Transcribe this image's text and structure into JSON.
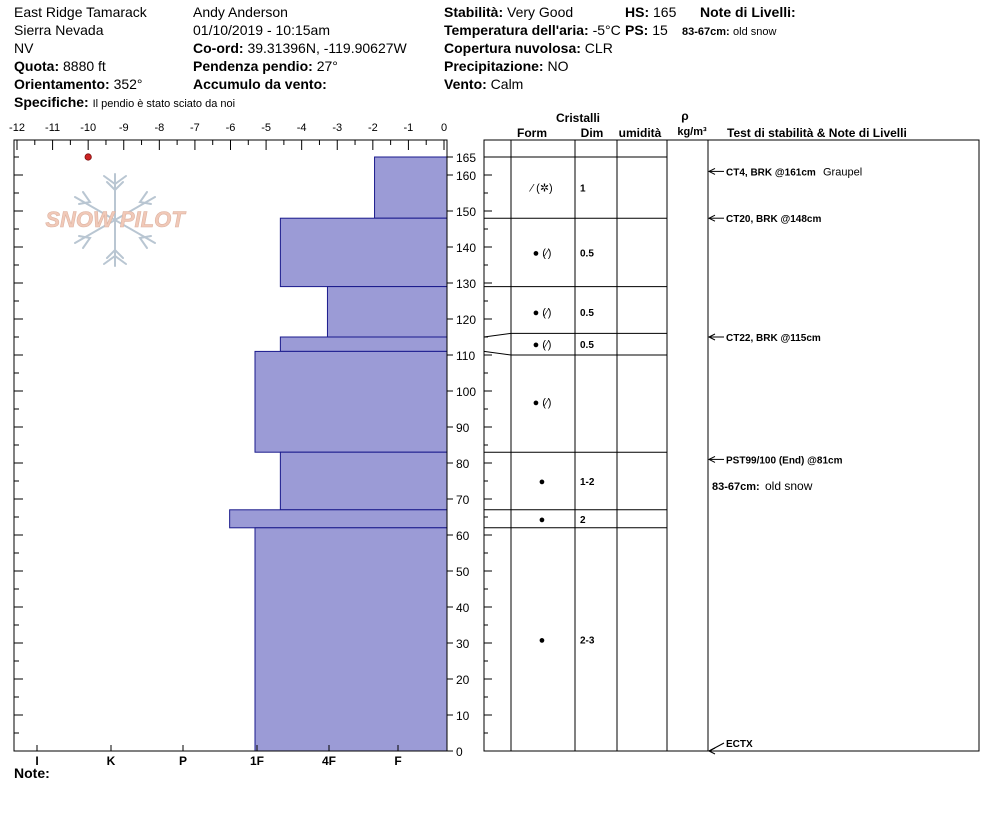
{
  "header": {
    "location": "East Ridge Tamarack",
    "range": "Sierra Nevada",
    "state": "NV",
    "elevation_label": "Quota:",
    "elevation_value": "8880 ft",
    "aspect_label": "Orientamento:",
    "aspect_value": "352°",
    "specifics_label": "Specifiche:",
    "specifics_value": "Il pendio è stato sciato da noi",
    "observer": "Andy Anderson",
    "datetime": "01/10/2019 - 10:15am",
    "coord_label": "Co-ord:",
    "coord_value": "39.31396N, -119.90627W",
    "slope_label": "Pendenza pendio:",
    "slope_value": "27°",
    "wind_loading_label": "Accumulo da vento:",
    "wind_loading_value": "",
    "stability_label": "Stabilità:",
    "stability_value": "Very Good",
    "air_temp_label": "Temperatura dell'aria:",
    "air_temp_value": "-5°C",
    "cloud_label": "Copertura nuvolosa:",
    "cloud_value": "CLR",
    "precip_label": "Precipitazione:",
    "precip_value": "NO",
    "wind_label": "Vento:",
    "wind_value": "Calm",
    "hs_label": "HS:",
    "hs_value": "165",
    "ps_label": "PS:",
    "ps_value": "15",
    "layer_notes_label": "Note di Livelli:",
    "layer_notes_range": "83-67cm:",
    "layer_notes_text": "old snow"
  },
  "footer": {
    "note_label": "Note:"
  },
  "logo": {
    "text": "SNOW PILOT",
    "icon": "snowflake-icon"
  },
  "columns": {
    "crystals": "Cristalli",
    "form": "Form",
    "size": "Dim",
    "moisture": "umidità",
    "density_symbol": "ρ",
    "density_unit": "kg/m³",
    "stability_notes": "Test di stabilità & Note di Livelli"
  },
  "chart_data": {
    "type": "bar",
    "title": "",
    "temperature_axis": {
      "ticks": [
        -12,
        -11,
        -10,
        -9,
        -8,
        -7,
        -6,
        -5,
        -4,
        -3,
        -2,
        -1,
        0
      ],
      "range": [
        -12,
        0
      ]
    },
    "temperature_points": [
      {
        "depth": 165,
        "temp": -10
      }
    ],
    "height_axis": {
      "ticks": [
        0,
        10,
        20,
        30,
        40,
        50,
        60,
        70,
        80,
        90,
        100,
        110,
        120,
        130,
        140,
        150,
        160,
        165
      ],
      "range": [
        0,
        165
      ]
    },
    "hardness_axis": {
      "labels": [
        "I",
        "K",
        "P",
        "1F",
        "4F",
        "F"
      ],
      "scale_note": "F=1, 4F=2, 1F=3, P=4, K=5, I=6"
    },
    "layers": [
      {
        "top": 165,
        "bottom": 148,
        "hardness": 1,
        "form": "⁄ (✲)",
        "size": "1"
      },
      {
        "top": 148,
        "bottom": 129,
        "hardness": 2.3,
        "form": "● (⁄)",
        "size": "0.5"
      },
      {
        "top": 129,
        "bottom": 115,
        "hardness": 1.65,
        "form": "● (⁄)",
        "size": "0.5"
      },
      {
        "top": 115,
        "bottom": 111,
        "hardness": 2.3,
        "form": "● (⁄)",
        "size": "0.5"
      },
      {
        "top": 111,
        "bottom": 83,
        "hardness": 2.65,
        "form": "● (⁄)",
        "size": ""
      },
      {
        "top": 83,
        "bottom": 67,
        "hardness": 2.3,
        "form": "●",
        "size": "1-2"
      },
      {
        "top": 67,
        "bottom": 62,
        "hardness": 3.0,
        "form": "●",
        "size": "2"
      },
      {
        "top": 62,
        "bottom": 0,
        "hardness": 2.65,
        "form": "●",
        "size": "2-3"
      }
    ],
    "layer_lines": [
      {
        "left": 165,
        "right": 165
      },
      {
        "left": 148,
        "right": 148
      },
      {
        "left": 129,
        "right": 129
      },
      {
        "left": 115,
        "right": 116
      },
      {
        "left": 111,
        "right": 110
      },
      {
        "left": 83,
        "right": 83
      },
      {
        "left": 67,
        "right": 67
      },
      {
        "left": 62,
        "right": 62
      }
    ],
    "stability_tests": [
      {
        "depth": 161,
        "label": "CT4, BRK @161cm",
        "note": "Graupel"
      },
      {
        "depth": 148,
        "label": "CT20, BRK @148cm",
        "note": ""
      },
      {
        "depth": 115,
        "label": "CT22, BRK @115cm",
        "note": ""
      },
      {
        "depth": 81,
        "label": "PST99/100 (End) @81cm",
        "note": ""
      },
      {
        "depth": 0,
        "label": "ECTX",
        "note": ""
      }
    ],
    "layer_note": {
      "label": "83-67cm:",
      "text": "old snow"
    }
  },
  "colors": {
    "layer_fill": "#9b9bd6",
    "layer_stroke": "#1a1a8c",
    "temp_point": "#cc2222",
    "logo_text": "#f1c9b8",
    "logo_flake": "#b9c6d2"
  }
}
